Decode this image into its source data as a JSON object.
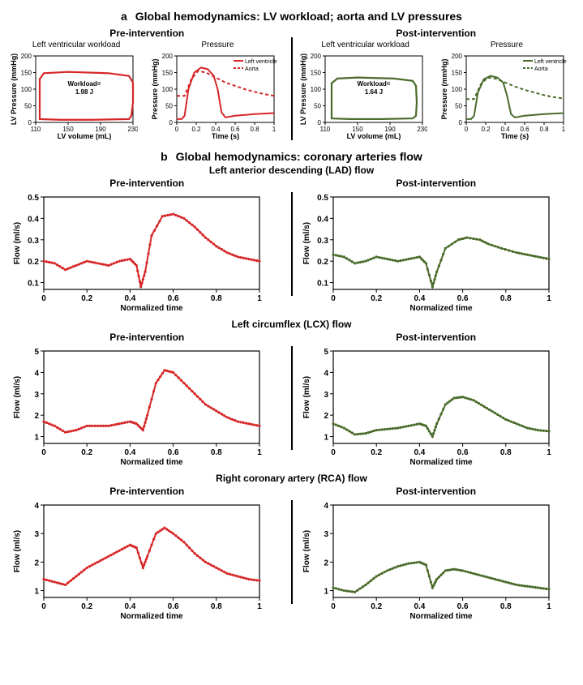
{
  "colors": {
    "pre": "#d62728",
    "post": "#4a6b2a",
    "axis": "#000000",
    "bg": "#ffffff"
  },
  "a": {
    "mainTitle": "Global hemodynamics: LV workload; aorta and LV pressures",
    "pre": {
      "title": "Pre-intervention",
      "workload": {
        "title": "Left ventricular workload",
        "xlabel": "LV volume (mL)",
        "ylabel": "LV Pressure (mmHg)",
        "xticks": [
          110,
          150,
          190,
          230
        ],
        "yticks": [
          0,
          50,
          100,
          150,
          200
        ],
        "annotation": "Workload=\n1.98 J",
        "loop": [
          [
            115,
            10
          ],
          [
            115,
            30
          ],
          [
            115,
            130
          ],
          [
            120,
            148
          ],
          [
            150,
            152
          ],
          [
            200,
            148
          ],
          [
            225,
            140
          ],
          [
            230,
            120
          ],
          [
            230,
            60
          ],
          [
            228,
            20
          ],
          [
            225,
            10
          ],
          [
            180,
            8
          ],
          [
            140,
            8
          ],
          [
            115,
            10
          ]
        ]
      },
      "pressure": {
        "title": "Pressure",
        "xlabel": "Time (s)",
        "ylabel": "Pressure (mmHg)",
        "xticks": [
          0,
          0.2,
          0.4,
          0.6,
          0.8,
          1
        ],
        "yticks": [
          0,
          50,
          100,
          150,
          200
        ],
        "legend": [
          "Left ventricle",
          "Aorta"
        ],
        "lv": [
          [
            0,
            10
          ],
          [
            0.05,
            10
          ],
          [
            0.08,
            20
          ],
          [
            0.12,
            100
          ],
          [
            0.18,
            150
          ],
          [
            0.25,
            165
          ],
          [
            0.32,
            160
          ],
          [
            0.38,
            140
          ],
          [
            0.42,
            100
          ],
          [
            0.46,
            30
          ],
          [
            0.5,
            15
          ],
          [
            0.6,
            20
          ],
          [
            0.8,
            25
          ],
          [
            1,
            28
          ]
        ],
        "aorta": [
          [
            0,
            80
          ],
          [
            0.08,
            80
          ],
          [
            0.15,
            130
          ],
          [
            0.22,
            155
          ],
          [
            0.3,
            150
          ],
          [
            0.4,
            135
          ],
          [
            0.5,
            120
          ],
          [
            0.6,
            110
          ],
          [
            0.7,
            100
          ],
          [
            0.8,
            92
          ],
          [
            0.9,
            85
          ],
          [
            1,
            80
          ]
        ]
      }
    },
    "post": {
      "title": "Post-intervention",
      "workload": {
        "title": "Left ventricular workload",
        "xlabel": "LV volume (mL)",
        "ylabel": "LV Pressure (mmHg)",
        "xticks": [
          110,
          150,
          190,
          230
        ],
        "yticks": [
          0,
          50,
          100,
          150,
          200
        ],
        "annotation": "Workload=\n1.64 J",
        "loop": [
          [
            118,
            12
          ],
          [
            118,
            30
          ],
          [
            118,
            118
          ],
          [
            125,
            132
          ],
          [
            150,
            135
          ],
          [
            195,
            132
          ],
          [
            218,
            125
          ],
          [
            222,
            110
          ],
          [
            223,
            60
          ],
          [
            222,
            20
          ],
          [
            218,
            12
          ],
          [
            180,
            10
          ],
          [
            140,
            10
          ],
          [
            118,
            12
          ]
        ]
      },
      "pressure": {
        "title": "Pressure",
        "xlabel": "Time (s)",
        "ylabel": "Pressure (mmHg)",
        "xticks": [
          0,
          0.2,
          0.4,
          0.6,
          0.8,
          1
        ],
        "yticks": [
          0,
          50,
          100,
          150,
          200
        ],
        "legend": [
          "Left ventricle",
          "Aorta"
        ],
        "lv": [
          [
            0,
            10
          ],
          [
            0.05,
            10
          ],
          [
            0.08,
            20
          ],
          [
            0.12,
            90
          ],
          [
            0.18,
            130
          ],
          [
            0.25,
            140
          ],
          [
            0.32,
            135
          ],
          [
            0.38,
            120
          ],
          [
            0.42,
            80
          ],
          [
            0.46,
            25
          ],
          [
            0.5,
            15
          ],
          [
            0.6,
            20
          ],
          [
            0.8,
            25
          ],
          [
            1,
            28
          ]
        ],
        "aorta": [
          [
            0,
            70
          ],
          [
            0.08,
            70
          ],
          [
            0.15,
            115
          ],
          [
            0.22,
            135
          ],
          [
            0.3,
            132
          ],
          [
            0.4,
            120
          ],
          [
            0.5,
            108
          ],
          [
            0.6,
            98
          ],
          [
            0.7,
            90
          ],
          [
            0.8,
            82
          ],
          [
            0.9,
            76
          ],
          [
            1,
            72
          ]
        ]
      }
    }
  },
  "b": {
    "mainTitle": "Global hemodynamics: coronary arteries flow",
    "charts": [
      {
        "title": "Left anterior descending (LAD) flow",
        "ylabel": "Flow (ml/s)",
        "xlabel": "Normalized time",
        "xticks": [
          0,
          0.2,
          0.4,
          0.6,
          0.8,
          1
        ],
        "pre": {
          "yticks": [
            0.1,
            0.2,
            0.3,
            0.4,
            0.5
          ],
          "series": [
            [
              0,
              0.2
            ],
            [
              0.05,
              0.19
            ],
            [
              0.1,
              0.16
            ],
            [
              0.15,
              0.18
            ],
            [
              0.2,
              0.2
            ],
            [
              0.25,
              0.19
            ],
            [
              0.3,
              0.18
            ],
            [
              0.35,
              0.2
            ],
            [
              0.4,
              0.21
            ],
            [
              0.43,
              0.18
            ],
            [
              0.45,
              0.08
            ],
            [
              0.47,
              0.15
            ],
            [
              0.5,
              0.32
            ],
            [
              0.55,
              0.41
            ],
            [
              0.6,
              0.42
            ],
            [
              0.65,
              0.4
            ],
            [
              0.7,
              0.36
            ],
            [
              0.75,
              0.31
            ],
            [
              0.8,
              0.27
            ],
            [
              0.85,
              0.24
            ],
            [
              0.9,
              0.22
            ],
            [
              0.95,
              0.21
            ],
            [
              1,
              0.2
            ]
          ]
        },
        "post": {
          "yticks": [
            0.1,
            0.2,
            0.3,
            0.4,
            0.5
          ],
          "series": [
            [
              0,
              0.23
            ],
            [
              0.05,
              0.22
            ],
            [
              0.1,
              0.19
            ],
            [
              0.15,
              0.2
            ],
            [
              0.2,
              0.22
            ],
            [
              0.25,
              0.21
            ],
            [
              0.3,
              0.2
            ],
            [
              0.35,
              0.21
            ],
            [
              0.4,
              0.22
            ],
            [
              0.43,
              0.19
            ],
            [
              0.46,
              0.08
            ],
            [
              0.48,
              0.15
            ],
            [
              0.52,
              0.26
            ],
            [
              0.58,
              0.3
            ],
            [
              0.62,
              0.31
            ],
            [
              0.68,
              0.3
            ],
            [
              0.72,
              0.28
            ],
            [
              0.78,
              0.26
            ],
            [
              0.85,
              0.24
            ],
            [
              0.9,
              0.23
            ],
            [
              0.95,
              0.22
            ],
            [
              1,
              0.21
            ]
          ]
        }
      },
      {
        "title": "Left circumflex (LCX) flow",
        "ylabel": "Flow (ml/s)",
        "xlabel": "Normalized time",
        "xticks": [
          0,
          0.2,
          0.4,
          0.6,
          0.8,
          1
        ],
        "pre": {
          "yticks": [
            1,
            2,
            3,
            4,
            5
          ],
          "series": [
            [
              0,
              1.7
            ],
            [
              0.05,
              1.5
            ],
            [
              0.1,
              1.2
            ],
            [
              0.15,
              1.3
            ],
            [
              0.2,
              1.5
            ],
            [
              0.25,
              1.5
            ],
            [
              0.3,
              1.5
            ],
            [
              0.35,
              1.6
            ],
            [
              0.4,
              1.7
            ],
            [
              0.43,
              1.6
            ],
            [
              0.46,
              1.3
            ],
            [
              0.48,
              2.0
            ],
            [
              0.52,
              3.5
            ],
            [
              0.56,
              4.1
            ],
            [
              0.6,
              4.0
            ],
            [
              0.65,
              3.5
            ],
            [
              0.7,
              3.0
            ],
            [
              0.75,
              2.5
            ],
            [
              0.8,
              2.2
            ],
            [
              0.85,
              1.9
            ],
            [
              0.9,
              1.7
            ],
            [
              0.95,
              1.6
            ],
            [
              1,
              1.5
            ]
          ]
        },
        "post": {
          "yticks": [
            1,
            2,
            3,
            4,
            5
          ],
          "series": [
            [
              0,
              1.6
            ],
            [
              0.05,
              1.4
            ],
            [
              0.1,
              1.1
            ],
            [
              0.15,
              1.15
            ],
            [
              0.2,
              1.3
            ],
            [
              0.25,
              1.35
            ],
            [
              0.3,
              1.4
            ],
            [
              0.35,
              1.5
            ],
            [
              0.4,
              1.6
            ],
            [
              0.43,
              1.5
            ],
            [
              0.46,
              1.0
            ],
            [
              0.48,
              1.6
            ],
            [
              0.52,
              2.5
            ],
            [
              0.56,
              2.8
            ],
            [
              0.6,
              2.85
            ],
            [
              0.65,
              2.7
            ],
            [
              0.7,
              2.4
            ],
            [
              0.75,
              2.1
            ],
            [
              0.8,
              1.8
            ],
            [
              0.85,
              1.6
            ],
            [
              0.9,
              1.4
            ],
            [
              0.95,
              1.3
            ],
            [
              1,
              1.25
            ]
          ]
        }
      },
      {
        "title": "Right coronary artery (RCA) flow",
        "ylabel": "Flow (ml/s)",
        "xlabel": "Normalized time",
        "xticks": [
          0,
          0.2,
          0.4,
          0.6,
          0.8,
          1
        ],
        "pre": {
          "yticks": [
            1,
            2,
            3,
            4
          ],
          "series": [
            [
              0,
              1.4
            ],
            [
              0.05,
              1.3
            ],
            [
              0.1,
              1.2
            ],
            [
              0.15,
              1.5
            ],
            [
              0.2,
              1.8
            ],
            [
              0.25,
              2.0
            ],
            [
              0.3,
              2.2
            ],
            [
              0.35,
              2.4
            ],
            [
              0.4,
              2.6
            ],
            [
              0.43,
              2.5
            ],
            [
              0.46,
              1.8
            ],
            [
              0.48,
              2.2
            ],
            [
              0.52,
              3.0
            ],
            [
              0.56,
              3.2
            ],
            [
              0.6,
              3.0
            ],
            [
              0.65,
              2.7
            ],
            [
              0.7,
              2.3
            ],
            [
              0.75,
              2.0
            ],
            [
              0.8,
              1.8
            ],
            [
              0.85,
              1.6
            ],
            [
              0.9,
              1.5
            ],
            [
              0.95,
              1.4
            ],
            [
              1,
              1.35
            ]
          ]
        },
        "post": {
          "yticks": [
            1,
            2,
            3,
            4
          ],
          "series": [
            [
              0,
              1.1
            ],
            [
              0.05,
              1.0
            ],
            [
              0.1,
              0.95
            ],
            [
              0.15,
              1.2
            ],
            [
              0.2,
              1.5
            ],
            [
              0.25,
              1.7
            ],
            [
              0.3,
              1.85
            ],
            [
              0.35,
              1.95
            ],
            [
              0.4,
              2.0
            ],
            [
              0.43,
              1.9
            ],
            [
              0.46,
              1.1
            ],
            [
              0.48,
              1.4
            ],
            [
              0.52,
              1.7
            ],
            [
              0.56,
              1.75
            ],
            [
              0.6,
              1.7
            ],
            [
              0.65,
              1.6
            ],
            [
              0.7,
              1.5
            ],
            [
              0.75,
              1.4
            ],
            [
              0.8,
              1.3
            ],
            [
              0.85,
              1.2
            ],
            [
              0.9,
              1.15
            ],
            [
              0.95,
              1.1
            ],
            [
              1,
              1.05
            ]
          ]
        }
      }
    ]
  }
}
